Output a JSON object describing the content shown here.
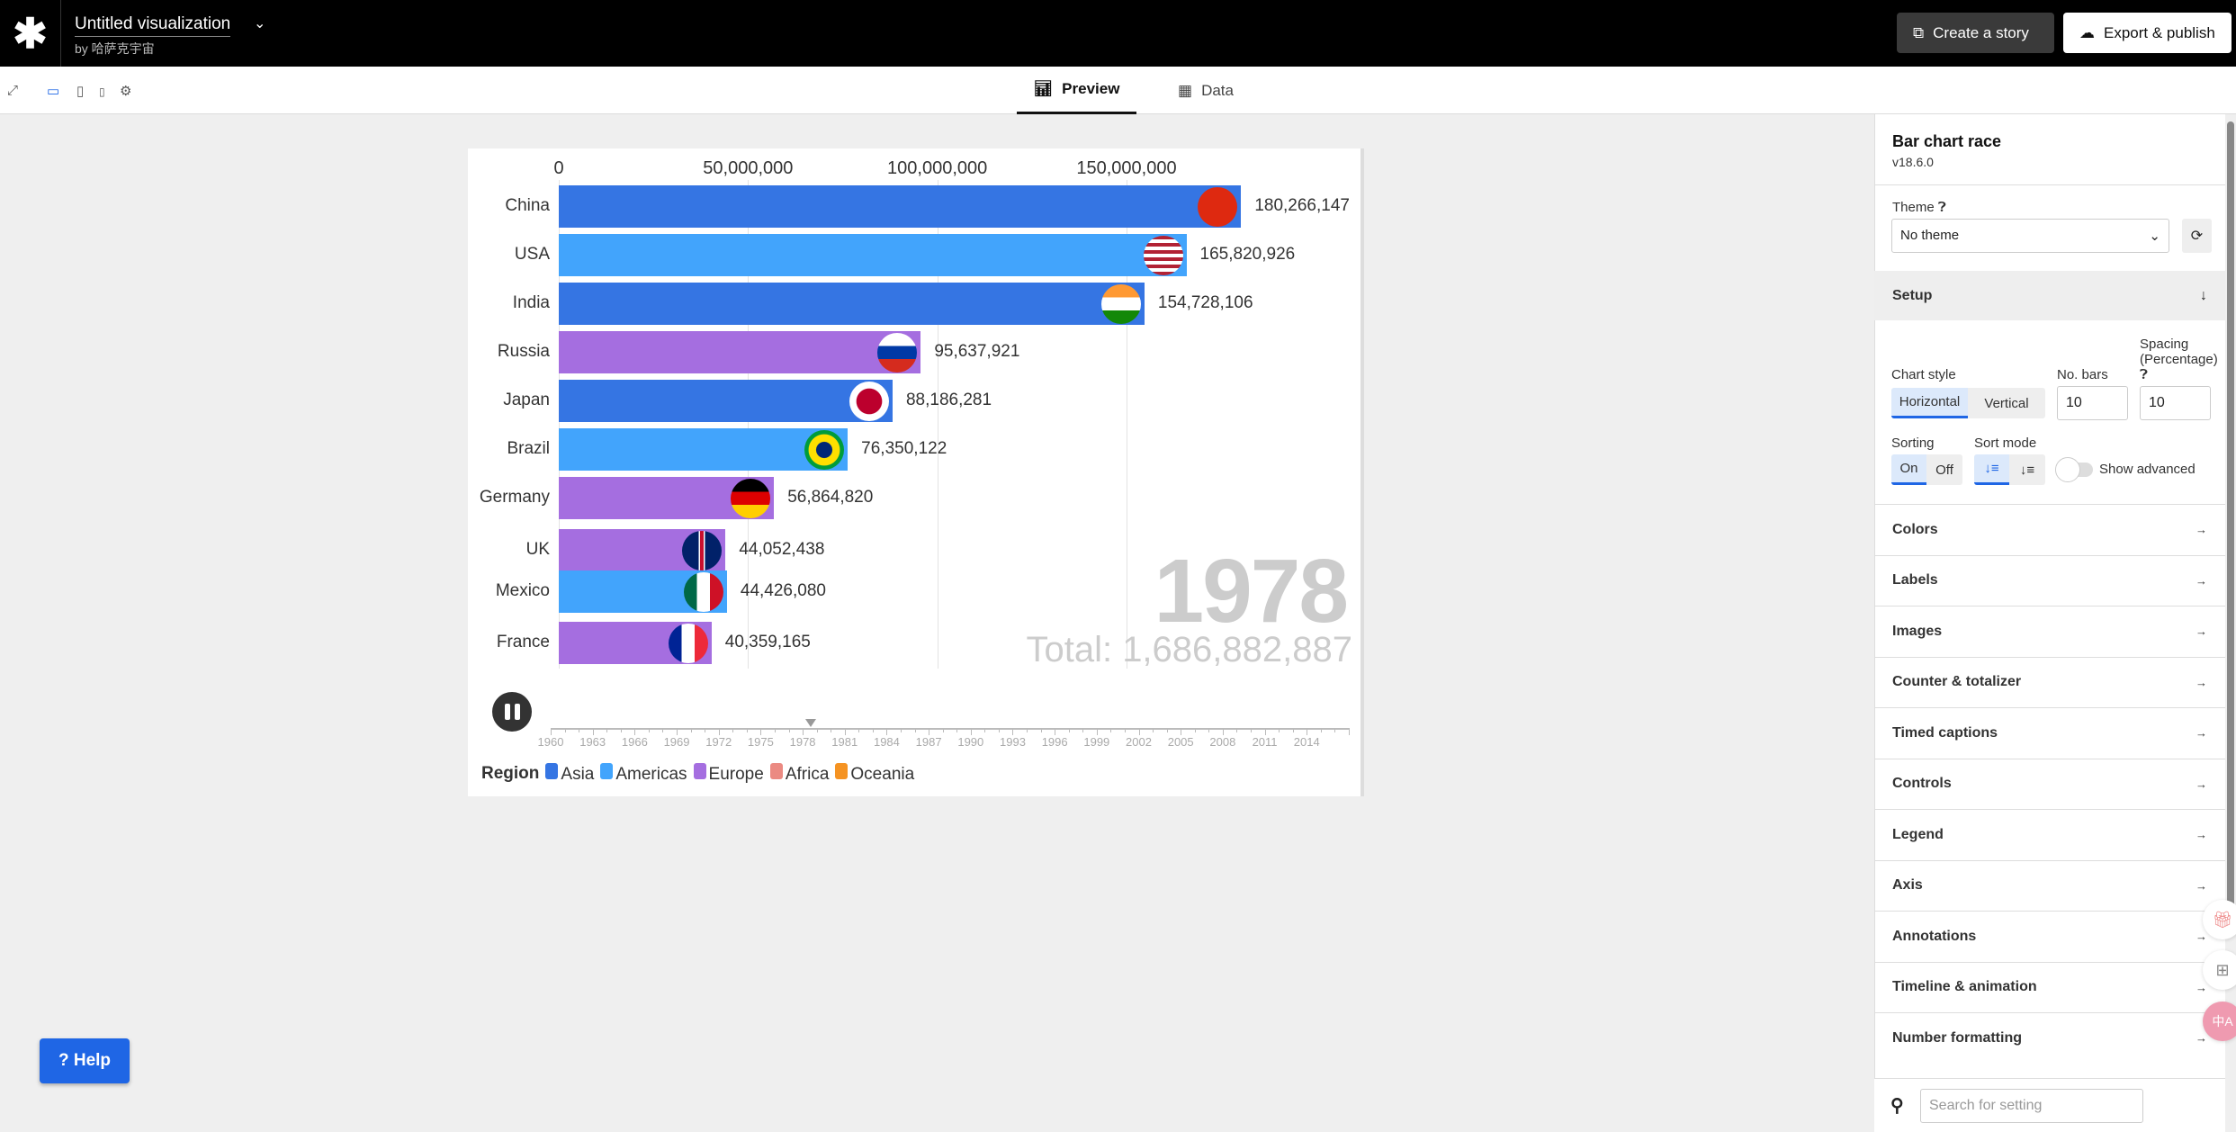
{
  "topbar": {
    "title": "Untitled visualization",
    "byline": "by 哈萨克宇宙",
    "create_story": "Create a story",
    "export": "Export & publish"
  },
  "tabs": {
    "preview": "Preview",
    "data": "Data"
  },
  "chart_data": {
    "type": "bar",
    "orientation": "horizontal",
    "title": "",
    "categories": [
      "China",
      "USA",
      "India",
      "Russia",
      "Japan",
      "Brazil",
      "Germany",
      "UK",
      "Mexico",
      "France"
    ],
    "values": [
      180266147,
      165820926,
      154728106,
      95637921,
      88186281,
      76350122,
      56864820,
      44052438,
      44426080,
      40359165
    ],
    "value_labels": [
      "180,266,147",
      "165,820,926",
      "154,728,106",
      "95,637,921",
      "88,186,281",
      "76,350,122",
      "56,864,820",
      "44,052,438",
      "44,426,080",
      "40,359,165"
    ],
    "regions": [
      "Asia",
      "Americas",
      "Asia",
      "Europe",
      "Asia",
      "Americas",
      "Europe",
      "Europe",
      "Americas",
      "Europe"
    ],
    "x_ticks": [
      0,
      50000000,
      100000000,
      150000000
    ],
    "x_tick_labels": [
      "0",
      "50,000,000",
      "100,000,000",
      "150,000,000"
    ],
    "xlim": [
      0,
      180266147
    ],
    "grid": true,
    "year": "1978",
    "total": "Total: 1,686,882,887",
    "timeline": {
      "start": 1960,
      "end": 2017,
      "current": 1978.6,
      "labels": [
        "1960",
        "1963",
        "1966",
        "1969",
        "1972",
        "1975",
        "1978",
        "1981",
        "1984",
        "1987",
        "1990",
        "1993",
        "1996",
        "1999",
        "2002",
        "2005",
        "2008",
        "2011",
        "2014"
      ]
    },
    "legend": {
      "title": "Region",
      "entries": [
        {
          "name": "Asia",
          "color": "#3575e3"
        },
        {
          "name": "Americas",
          "color": "#42a4fc"
        },
        {
          "name": "Europe",
          "color": "#a56ee0"
        },
        {
          "name": "Africa",
          "color": "#eb8a82"
        },
        {
          "name": "Oceania",
          "color": "#f59322"
        }
      ]
    },
    "legend_position": "bottom-left"
  },
  "panel": {
    "title": "Bar chart race",
    "version": "v18.6.0",
    "theme_label": "Theme",
    "theme_value": "No theme",
    "setup": "Setup",
    "chart_style": "Chart style",
    "horizontal": "Horizontal",
    "vertical": "Vertical",
    "no_bars": "No. bars",
    "no_bars_value": "10",
    "spacing": "Spacing (Percentage)",
    "spacing_value": "10",
    "sorting": "Sorting",
    "on": "On",
    "off": "Off",
    "sort_mode": "Sort mode",
    "show_advanced": "Show advanced",
    "sections": [
      "Colors",
      "Labels",
      "Images",
      "Counter & totalizer",
      "Timed captions",
      "Controls",
      "Legend",
      "Axis",
      "Annotations",
      "Timeline & animation",
      "Number formatting"
    ],
    "search_placeholder": "Search for setting"
  },
  "help": "? Help"
}
